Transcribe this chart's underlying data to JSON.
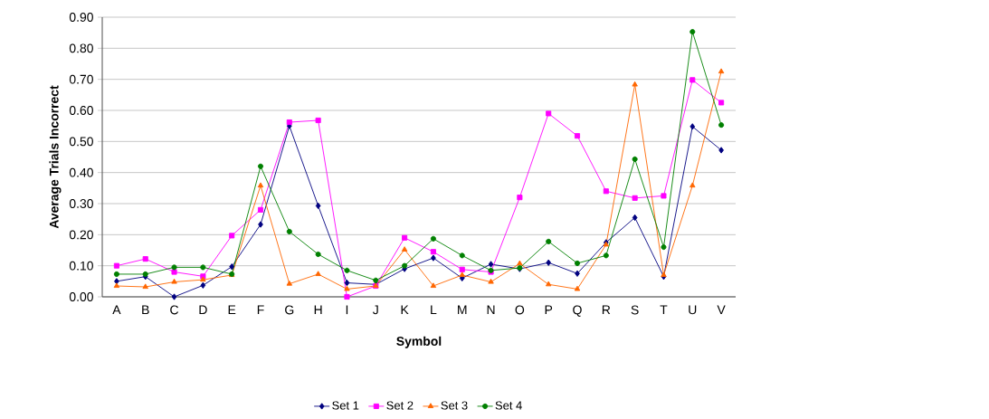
{
  "chart_data": {
    "type": "line",
    "xlabel": "Symbol",
    "ylabel": "Average Trials Incorrect",
    "categories": [
      "A",
      "B",
      "C",
      "D",
      "E",
      "F",
      "G",
      "H",
      "I",
      "J",
      "K",
      "L",
      "M",
      "N",
      "O",
      "P",
      "Q",
      "R",
      "S",
      "T",
      "U",
      "V"
    ],
    "series": [
      {
        "name": "Set 1",
        "color": "#000080",
        "marker": "diamond",
        "values": [
          0.05,
          0.065,
          0.0,
          0.037,
          0.097,
          0.233,
          0.55,
          0.293,
          0.045,
          0.04,
          0.09,
          0.125,
          0.06,
          0.105,
          0.09,
          0.11,
          0.075,
          0.175,
          0.255,
          0.065,
          0.548,
          0.472
        ]
      },
      {
        "name": "Set 2",
        "color": "#ff00ff",
        "marker": "square",
        "values": [
          0.1,
          0.122,
          0.08,
          0.066,
          0.197,
          0.28,
          0.562,
          0.568,
          0.0,
          0.035,
          0.19,
          0.145,
          0.088,
          0.08,
          0.32,
          0.59,
          0.518,
          0.34,
          0.318,
          0.325,
          0.698,
          0.625
        ]
      },
      {
        "name": "Set 3",
        "color": "#ff6600",
        "marker": "triangle",
        "values": [
          0.035,
          0.032,
          0.048,
          0.055,
          0.07,
          0.358,
          0.042,
          0.073,
          0.025,
          0.035,
          0.152,
          0.035,
          0.07,
          0.048,
          0.107,
          0.04,
          0.025,
          0.168,
          0.683,
          0.07,
          0.358,
          0.725
        ]
      },
      {
        "name": "Set 4",
        "color": "#008000",
        "marker": "circle",
        "values": [
          0.073,
          0.073,
          0.095,
          0.095,
          0.073,
          0.42,
          0.21,
          0.137,
          0.085,
          0.053,
          0.1,
          0.187,
          0.133,
          0.085,
          0.093,
          0.178,
          0.108,
          0.133,
          0.443,
          0.16,
          0.853,
          0.553
        ]
      }
    ],
    "ylim": [
      0,
      0.9
    ],
    "yticks": [
      {
        "value": 0,
        "label": "0.00"
      },
      {
        "value": 0.1,
        "label": "0.10"
      },
      {
        "value": 0.2,
        "label": "0.20"
      },
      {
        "value": 0.3,
        "label": "0.30"
      },
      {
        "value": 0.4,
        "label": "0.40"
      },
      {
        "value": 0.5,
        "label": "0.50"
      },
      {
        "value": 0.6,
        "label": "0.60"
      },
      {
        "value": 0.7,
        "label": "0.70"
      },
      {
        "value": 0.8,
        "label": "0.80"
      },
      {
        "value": 0.9,
        "label": "0.90"
      }
    ],
    "grid": "y",
    "legend": "bottom",
    "line_style": "solid"
  }
}
